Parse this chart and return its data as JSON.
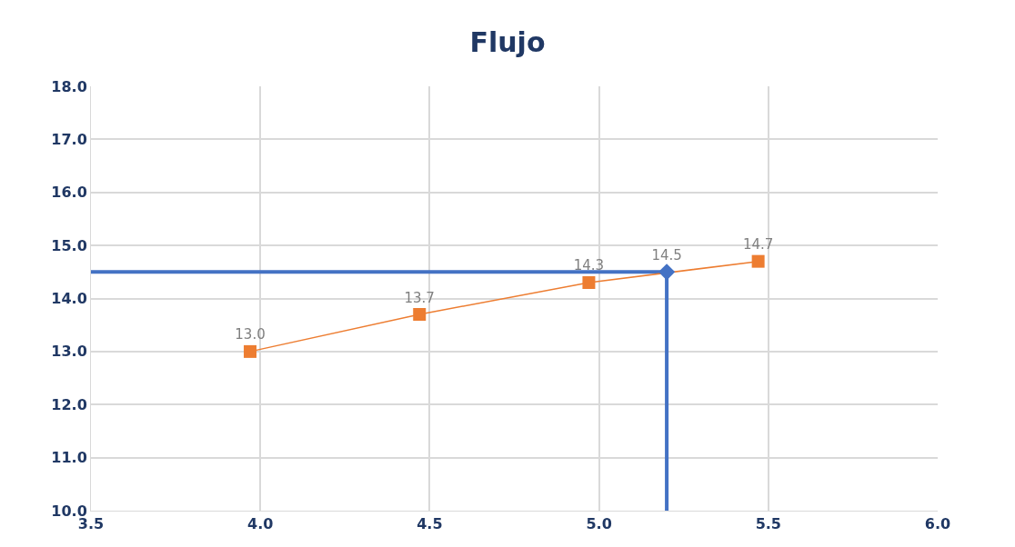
{
  "chart_data": {
    "type": "scatter",
    "title": "Flujo",
    "xlim": [
      3.5,
      6.0
    ],
    "xticks": [
      {
        "value": 3.5,
        "label": "3.5"
      },
      {
        "value": 4.0,
        "label": "4.0"
      },
      {
        "value": 4.5,
        "label": "4.5"
      },
      {
        "value": 5.0,
        "label": "5.0"
      },
      {
        "value": 5.5,
        "label": "5.5"
      },
      {
        "value": 6.0,
        "label": "6.0"
      }
    ],
    "ylim": [
      10,
      18
    ],
    "yticks": [
      {
        "value": 10,
        "label": "10.0"
      },
      {
        "value": 11,
        "label": "11.0"
      },
      {
        "value": 12,
        "label": "12.0"
      },
      {
        "value": 13,
        "label": "13.0"
      },
      {
        "value": 14,
        "label": "14.0"
      },
      {
        "value": 15,
        "label": "15.0"
      },
      {
        "value": 16,
        "label": "16.0"
      },
      {
        "value": 17,
        "label": "17.0"
      },
      {
        "value": 18,
        "label": "18.0"
      }
    ],
    "grid": true,
    "series": [
      {
        "type": "line",
        "color": "#4472c4",
        "x": [
          3.5,
          5.2,
          5.2
        ],
        "values": [
          14.5,
          14.5,
          10
        ],
        "marker": "none"
      },
      {
        "type": "line",
        "color": "#ed7d31",
        "x": [
          3.97,
          4.47,
          4.97,
          5.47
        ],
        "values": [
          13.0,
          13.7,
          14.3,
          14.7
        ],
        "marker": "square",
        "value_labels": [
          "13.0",
          "13.7",
          "14.3",
          "14.7"
        ]
      },
      {
        "color": "#4472c4",
        "x": [
          5.2
        ],
        "values": [
          14.5
        ],
        "marker": "diamond",
        "value_labels": [
          "14.5"
        ]
      }
    ]
  }
}
